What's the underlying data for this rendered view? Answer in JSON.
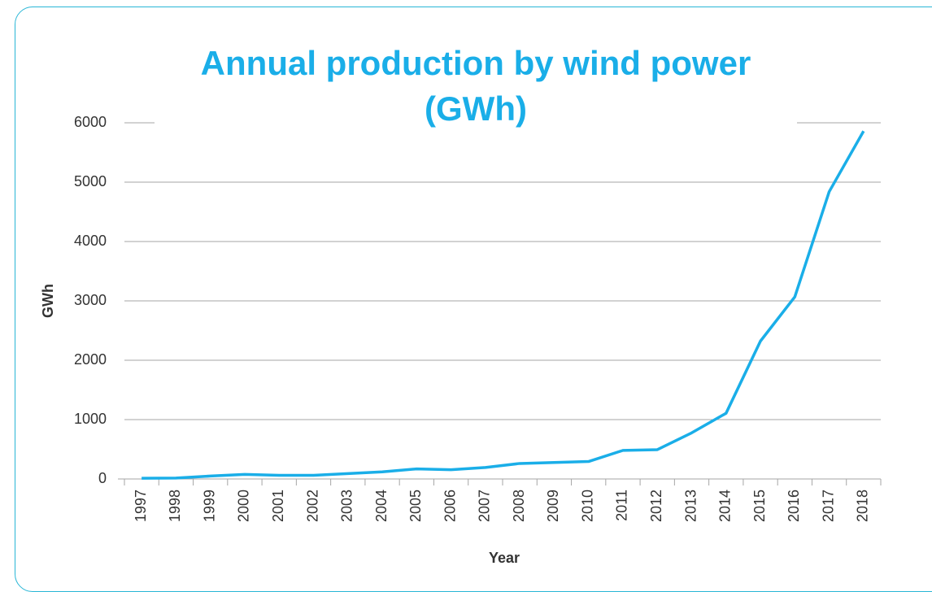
{
  "chart_data": {
    "type": "line",
    "title": "Annual production by wind power (GWh)",
    "x_label": "Year",
    "y_label": "GWh",
    "categories": [
      "1997",
      "1998",
      "1999",
      "2000",
      "2001",
      "2002",
      "2003",
      "2004",
      "2005",
      "2006",
      "2007",
      "2008",
      "2009",
      "2010",
      "2011",
      "2012",
      "2013",
      "2014",
      "2015",
      "2016",
      "2017",
      "2018"
    ],
    "series": [
      {
        "name": "GWh",
        "color": "#1aaee8",
        "values": [
          12,
          16,
          49,
          77,
          62,
          61,
          91,
          120,
          170,
          156,
          194,
          261,
          277,
          294,
          481,
          494,
          777,
          1107,
          2322,
          3068,
          4840,
          5860
        ]
      }
    ],
    "ylim": [
      0,
      6000
    ],
    "yticks": [
      0,
      1000,
      2000,
      3000,
      4000,
      5000,
      6000
    ],
    "grid": true
  }
}
